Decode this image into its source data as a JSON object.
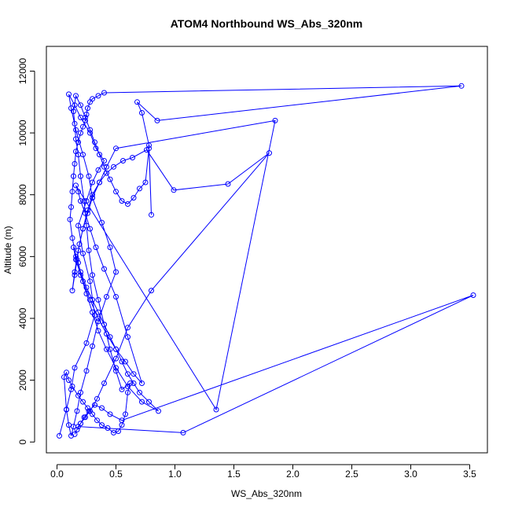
{
  "chart_data": {
    "type": "line",
    "title": "ATOM4 Northbound WS_Abs_320nm",
    "xlabel": "WS_Abs_320nm",
    "ylabel": "Altitude (m)",
    "xlim": [
      -0.09,
      3.65
    ],
    "ylim": [
      -350,
      12800
    ],
    "xticks": [
      0.0,
      0.5,
      1.0,
      1.5,
      2.0,
      2.5,
      3.0,
      3.5
    ],
    "xtick_labels": [
      "0.0",
      "0.5",
      "1.0",
      "1.5",
      "2.0",
      "2.5",
      "3.0",
      "3.5"
    ],
    "yticks": [
      0,
      2000,
      4000,
      6000,
      8000,
      10000,
      12000
    ],
    "ytick_labels": [
      "0",
      "2000",
      "4000",
      "6000",
      "8000",
      "10000",
      "12000"
    ],
    "grid": false,
    "legend": "none",
    "marker": "open-circle",
    "series": [
      {
        "color": "#0000ff",
        "x": [
          0.02,
          0.08,
          0.12,
          0.15,
          0.25,
          0.32,
          0.28,
          0.22,
          0.18,
          0.25,
          0.3,
          0.35,
          0.4,
          0.33,
          0.28,
          0.2,
          0.15,
          0.1,
          0.12,
          0.16,
          0.22,
          0.27,
          0.3,
          0.38,
          0.45,
          0.5,
          0.42,
          0.35,
          0.3,
          0.25,
          0.2,
          0.17,
          0.14,
          0.12,
          0.1,
          0.08,
          0.06,
          0.08,
          0.1,
          0.13,
          0.18,
          0.22,
          0.26,
          0.3,
          0.34,
          0.38,
          0.43,
          0.48,
          0.52,
          0.55,
          0.58,
          0.6,
          0.62,
          0.55,
          0.5,
          0.45,
          0.4,
          0.35,
          0.3,
          0.27,
          0.25,
          0.23,
          0.2,
          0.18,
          0.16,
          0.15,
          0.14,
          0.16,
          0.2,
          0.24,
          0.28,
          0.32,
          0.36,
          0.4,
          0.45,
          0.5,
          0.55,
          0.6,
          0.65,
          0.7,
          0.75,
          0.78,
          0.8,
          0.78,
          0.72,
          0.68,
          0.85,
          3.43,
          0.4,
          0.35,
          0.3,
          0.28,
          0.26,
          0.25,
          0.24,
          0.22,
          0.2,
          0.18,
          0.16,
          0.15,
          0.14,
          0.13,
          0.12,
          0.11,
          0.13,
          0.16,
          0.2,
          0.25,
          0.3,
          0.35,
          0.4,
          0.45,
          0.5,
          0.55,
          0.6,
          0.65,
          0.7,
          0.78,
          0.86,
          0.72,
          0.6,
          0.5,
          0.42,
          0.35,
          0.3,
          0.25,
          0.2,
          0.16,
          0.14,
          0.18,
          0.22,
          0.28,
          0.35,
          0.42,
          0.5,
          0.58,
          0.65,
          0.72,
          0.6,
          0.5,
          0.4,
          0.33,
          0.28,
          0.24,
          0.2,
          0.18,
          0.16,
          1.35,
          1.85,
          0.5,
          0.42,
          0.36,
          0.3,
          0.26,
          0.22,
          0.19,
          0.17,
          0.15,
          0.13,
          0.15,
          0.18,
          0.22,
          0.26,
          0.3,
          0.36,
          0.42,
          0.48,
          0.56,
          0.64,
          0.76,
          0.99,
          1.45,
          1.8,
          0.8,
          0.6,
          0.5,
          0.4,
          0.34,
          0.28,
          0.24,
          0.2,
          0.18,
          1.07,
          3.53,
          0.55,
          0.45,
          0.38,
          0.32,
          0.27,
          0.23,
          0.2,
          0.17,
          0.15
        ],
        "y": [
          200,
          1050,
          1700,
          2400,
          3200,
          4100,
          5200,
          6100,
          7000,
          7800,
          8400,
          8800,
          9100,
          9500,
          10000,
          10500,
          10900,
          11250,
          10800,
          10100,
          9300,
          8600,
          7900,
          7100,
          6300,
          5500,
          4700,
          3900,
          3100,
          2300,
          1600,
          1000,
          500,
          200,
          550,
          1050,
          2100,
          2250,
          2000,
          1800,
          1500,
          1300,
          1100,
          900,
          700,
          550,
          450,
          300,
          350,
          550,
          900,
          1600,
          1900,
          1700,
          2300,
          3000,
          3800,
          4600,
          5400,
          6200,
          7000,
          7800,
          8600,
          9300,
          9800,
          10300,
          10700,
          11200,
          10900,
          10500,
          10100,
          9700,
          9300,
          8900,
          8500,
          8100,
          7800,
          7700,
          7900,
          8200,
          8400,
          9500,
          7350,
          9600,
          10650,
          11000,
          10400,
          11520,
          11300,
          11200,
          11100,
          11000,
          10800,
          10600,
          10400,
          10200,
          10000,
          9700,
          9400,
          9000,
          8600,
          8100,
          7600,
          7200,
          6600,
          6000,
          5500,
          5000,
          4600,
          4200,
          3800,
          3400,
          3000,
          2600,
          2200,
          1900,
          1600,
          1300,
          1000,
          1300,
          1800,
          2400,
          3000,
          3600,
          4200,
          4800,
          5400,
          5900,
          6300,
          5800,
          5200,
          4600,
          4000,
          3500,
          3000,
          2600,
          2200,
          1900,
          3400,
          4700,
          5600,
          6300,
          6900,
          7400,
          7800,
          8100,
          8300,
          1050,
          10400,
          9500,
          8900,
          8400,
          7900,
          7400,
          6900,
          6400,
          5900,
          5400,
          4900,
          5500,
          6200,
          6900,
          7500,
          8000,
          8400,
          8700,
          8900,
          9100,
          9200,
          9450,
          8150,
          8350,
          9350,
          4900,
          3700,
          2700,
          1900,
          1400,
          1000,
          800,
          600,
          500,
          300,
          4750,
          700,
          900,
          1100,
          1200,
          1000,
          800,
          600,
          400,
          250
        ]
      }
    ]
  }
}
